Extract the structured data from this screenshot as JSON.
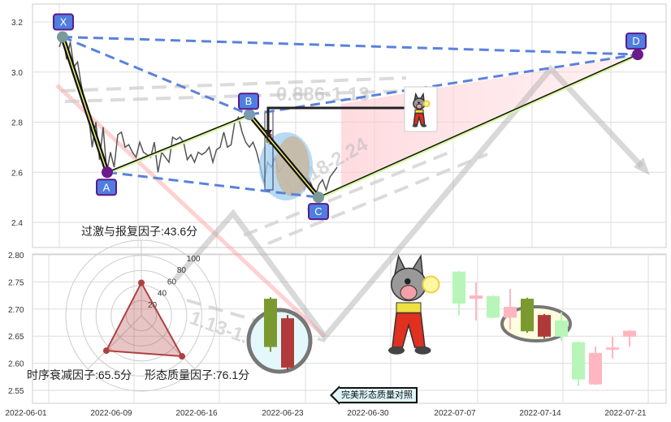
{
  "chart_data": [
    {
      "type": "line",
      "panel": "pattern",
      "yticks": [
        "3.2",
        "3.0",
        "2.8",
        "2.6",
        "2.4"
      ],
      "ylim": [
        2.35,
        3.26
      ],
      "price_series": [
        3.1,
        3.14,
        3.05,
        3.12,
        3.02,
        3.04,
        2.95,
        2.88,
        2.83,
        2.7,
        2.8,
        2.65,
        2.78,
        2.6,
        2.68,
        2.62,
        2.75,
        2.76,
        2.7,
        2.71,
        2.68,
        2.66,
        2.72,
        2.68,
        2.67,
        2.66,
        2.72,
        2.6,
        2.68,
        2.66,
        2.64,
        2.74,
        2.73,
        2.74,
        2.72,
        2.65,
        2.67,
        2.64,
        2.68,
        2.67,
        2.68,
        2.7,
        2.64,
        2.69,
        2.7,
        2.76,
        2.7,
        2.71,
        2.8,
        2.82,
        2.76,
        2.72,
        2.7,
        2.72,
        2.68,
        2.62,
        2.56,
        2.64,
        2.62,
        2.66,
        2.6,
        2.62,
        2.65,
        2.63,
        2.64,
        2.6,
        2.56,
        2.53,
        2.58,
        2.55,
        2.5,
        2.55,
        2.57,
        2.53,
        2.58,
        2.6,
        2.62
      ],
      "points": [
        {
          "label": "X",
          "price": 3.14
        },
        {
          "label": "A",
          "price": 2.6
        },
        {
          "label": "B",
          "price": 2.83
        },
        {
          "label": "C",
          "price": 2.5
        },
        {
          "label": "D",
          "price": 3.07
        }
      ],
      "watermarks": [
        "0.886-1.13",
        "1.618-2.24",
        "1.13-1.8"
      ],
      "grid": true
    },
    {
      "type": "candlestick",
      "panel": "kline",
      "yticks": [
        "2.80",
        "2.75",
        "2.70",
        "2.65",
        "2.60",
        "2.55"
      ],
      "ylim": [
        2.535,
        2.8
      ],
      "xticks": [
        "2022-06-01",
        "2022-06-09",
        "2022-06-16",
        "2022-06-23",
        "2022-06-30",
        "2022-07-07",
        "2022-07-14",
        "2022-07-21"
      ],
      "reference_candles": [
        {
          "o": 2.63,
          "h": 2.722,
          "l": 2.621,
          "c": 2.719
        },
        {
          "o": 2.683,
          "h": 2.689,
          "l": 2.587,
          "c": 2.592
        }
      ],
      "candles": [
        {
          "o": 2.71,
          "h": 2.77,
          "l": 2.688,
          "c": 2.769,
          "style": "faded"
        },
        {
          "o": 2.725,
          "h": 2.749,
          "l": 2.679,
          "c": 2.719,
          "style": "faded"
        },
        {
          "o": 2.684,
          "h": 2.725,
          "l": 2.683,
          "c": 2.724,
          "style": "faded"
        },
        {
          "o": 2.704,
          "h": 2.737,
          "l": 2.662,
          "c": 2.684,
          "style": "faded"
        },
        {
          "o": 2.659,
          "h": 2.721,
          "l": 2.656,
          "c": 2.719,
          "style": "strong"
        },
        {
          "o": 2.689,
          "h": 2.691,
          "l": 2.646,
          "c": 2.649,
          "style": "strong"
        },
        {
          "o": 2.649,
          "h": 2.694,
          "l": 2.641,
          "c": 2.679,
          "style": "faded"
        },
        {
          "o": 2.57,
          "h": 2.64,
          "l": 2.558,
          "c": 2.639,
          "style": "faded"
        },
        {
          "o": 2.619,
          "h": 2.631,
          "l": 2.56,
          "c": 2.561,
          "style": "faded"
        },
        {
          "o": 2.629,
          "h": 2.649,
          "l": 2.609,
          "c": 2.625,
          "style": "faded"
        },
        {
          "o": 2.66,
          "h": 2.661,
          "l": 2.631,
          "c": 2.649,
          "style": "faded"
        }
      ],
      "grid": true
    },
    {
      "type": "radar",
      "rticks": [
        "20",
        "40",
        "60",
        "80",
        "100"
      ],
      "rlim": [
        0,
        100
      ],
      "factors": [
        {
          "name": "过激与报复因子",
          "value": 43.6
        },
        {
          "name": "时序衰减因子",
          "value": 65.5
        },
        {
          "name": "形态质量因子",
          "value": 76.1
        }
      ]
    }
  ],
  "labels": {
    "factor1": "过激与报复因子:43.6分",
    "factor2": "时序衰减因子:65.5分",
    "factor3": "形态质量因子:76.1分"
  },
  "compare_button": {
    "label": "完美形态质量对照",
    "icon": "arrow-left-icon"
  },
  "colors": {
    "point_label_bg": "#4f7ee0",
    "point_label_border": "#5b1a8a",
    "dashed": "#5a82dc",
    "bull_strong": "#7a9a30",
    "bear_strong": "#b03a3a",
    "bull_faded": "#b8f5b8",
    "bear_faded": "#ffb6c1",
    "radar": "#b04040"
  }
}
